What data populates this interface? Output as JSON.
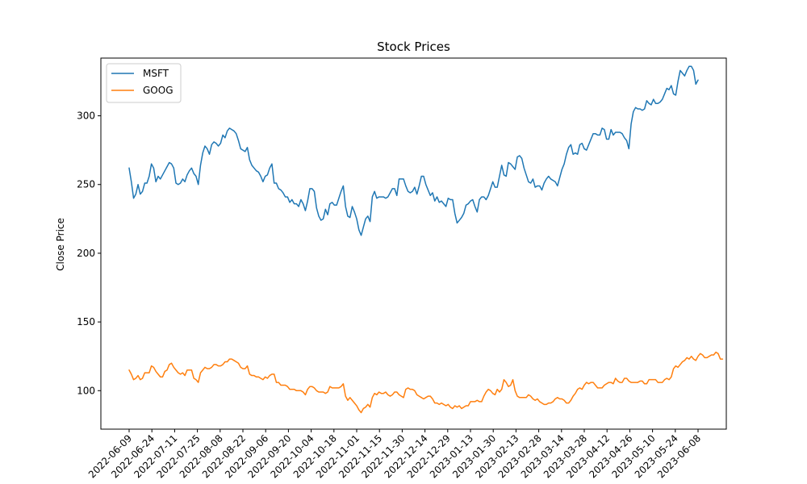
{
  "chart_data": {
    "type": "line",
    "title": "Stock Prices",
    "xlabel": "",
    "ylabel": "Close Price",
    "ylim": [
      72,
      342
    ],
    "yticks": [
      100,
      150,
      200,
      250,
      300
    ],
    "xticks": [
      "2022-06-09",
      "2022-06-24",
      "2022-07-11",
      "2022-07-25",
      "2022-08-08",
      "2022-08-22",
      "2022-09-06",
      "2022-09-20",
      "2022-10-04",
      "2022-10-18",
      "2022-11-01",
      "2022-11-15",
      "2022-11-30",
      "2022-12-14",
      "2022-12-29",
      "2023-01-13",
      "2023-01-30",
      "2023-02-13",
      "2023-02-28",
      "2023-03-14",
      "2023-03-28",
      "2023-04-12",
      "2023-04-26",
      "2023-05-10",
      "2023-05-24",
      "2023-06-08"
    ],
    "grid": false,
    "legend": "upper-left",
    "series": [
      {
        "name": "MSFT",
        "color": "#1f77b4",
        "values": [
          262,
          252,
          240,
          243,
          250,
          243,
          245,
          251,
          251,
          256,
          265,
          262,
          252,
          256,
          254,
          257,
          260,
          263,
          266,
          265,
          262,
          251,
          250,
          251,
          254,
          252,
          257,
          260,
          262,
          258,
          256,
          250,
          264,
          273,
          278,
          276,
          272,
          279,
          281,
          280,
          278,
          280,
          286,
          284,
          289,
          291,
          290,
          289,
          287,
          282,
          276,
          275,
          274,
          277,
          268,
          264,
          262,
          260,
          259,
          256,
          252,
          256,
          257,
          262,
          265,
          251,
          251,
          247,
          246,
          244,
          241,
          241,
          237,
          239,
          236,
          236,
          234,
          239,
          236,
          231,
          238,
          247,
          247,
          245,
          233,
          227,
          224,
          225,
          232,
          228,
          236,
          237,
          235,
          235,
          240,
          245,
          249,
          234,
          227,
          226,
          234,
          230,
          225,
          217,
          213,
          219,
          225,
          227,
          223,
          241,
          245,
          240,
          241,
          241,
          241,
          240,
          241,
          244,
          247,
          247,
          242,
          254,
          254,
          254,
          249,
          245,
          244,
          245,
          248,
          243,
          249,
          256,
          256,
          250,
          246,
          242,
          244,
          238,
          241,
          237,
          238,
          236,
          234,
          240,
          239,
          239,
          229,
          222,
          224,
          226,
          229,
          235,
          236,
          238,
          239,
          234,
          230,
          239,
          241,
          241,
          239,
          242,
          247,
          252,
          248,
          248,
          256,
          264,
          257,
          256,
          266,
          265,
          263,
          261,
          270,
          271,
          269,
          262,
          257,
          252,
          251,
          254,
          248,
          249,
          249,
          246,
          251,
          254,
          256,
          254,
          253,
          252,
          249,
          255,
          261,
          265,
          272,
          277,
          279,
          272,
          273,
          272,
          279,
          280,
          276,
          275,
          279,
          283,
          287,
          287,
          286,
          286,
          291,
          290,
          283,
          283,
          290,
          286,
          288,
          288,
          288,
          287,
          284,
          282,
          276,
          294,
          303,
          306,
          305,
          305,
          304,
          305,
          311,
          309,
          308,
          312,
          309,
          309,
          310,
          312,
          316,
          320,
          319,
          322,
          316,
          315,
          325,
          333,
          331,
          329,
          333,
          336,
          336,
          333,
          323,
          326
        ]
      },
      {
        "name": "GOOG",
        "color": "#ff7f0e",
        "values": [
          115,
          112,
          108,
          109,
          111,
          108,
          109,
          113,
          113,
          113,
          118,
          117,
          114,
          112,
          110,
          110,
          114,
          115,
          119,
          120,
          117,
          115,
          113,
          112,
          113,
          111,
          115,
          115,
          115,
          109,
          108,
          106,
          113,
          115,
          117,
          116,
          116,
          117,
          119,
          119,
          118,
          118,
          119,
          121,
          121,
          123,
          123,
          122,
          121,
          120,
          117,
          116,
          116,
          118,
          112,
          111,
          111,
          110,
          110,
          109,
          108,
          110,
          109,
          111,
          112,
          112,
          106,
          106,
          104,
          104,
          104,
          103,
          101,
          101,
          101,
          100,
          100,
          100,
          99,
          97,
          101,
          103,
          103,
          102,
          100,
          99,
          99,
          99,
          98,
          99,
          103,
          102,
          102,
          102,
          102,
          103,
          105,
          96,
          93,
          95,
          93,
          91,
          89,
          86,
          84,
          87,
          88,
          90,
          88,
          95,
          98,
          97,
          99,
          98,
          98,
          99,
          97,
          96,
          97,
          99,
          99,
          97,
          96,
          95,
          101,
          102,
          101,
          101,
          100,
          97,
          96,
          95,
          94,
          95,
          96,
          96,
          94,
          91,
          91,
          90,
          91,
          90,
          89,
          90,
          88,
          87,
          89,
          88,
          89,
          87,
          88,
          89,
          89,
          92,
          92,
          92,
          93,
          92,
          92,
          96,
          99,
          101,
          100,
          98,
          97,
          101,
          99,
          101,
          108,
          106,
          103,
          104,
          108,
          100,
          96,
          95,
          95,
          95,
          95,
          97,
          96,
          94,
          93,
          94,
          92,
          91,
          90,
          90,
          91,
          91,
          92,
          94,
          95,
          94,
          94,
          93,
          91,
          91,
          93,
          96,
          98,
          101,
          102,
          101,
          104,
          106,
          105,
          106,
          106,
          104,
          102,
          102,
          102,
          104,
          105,
          106,
          106,
          105,
          109,
          107,
          106,
          106,
          109,
          109,
          107,
          106,
          106,
          106,
          106,
          107,
          107,
          105,
          105,
          108,
          108,
          108,
          108,
          106,
          106,
          106,
          108,
          109,
          108,
          110,
          116,
          118,
          117,
          119,
          121,
          122,
          124,
          123,
          125,
          123,
          122,
          125,
          127,
          126,
          124,
          124,
          125,
          126,
          126,
          128,
          127,
          123,
          123
        ]
      }
    ]
  }
}
